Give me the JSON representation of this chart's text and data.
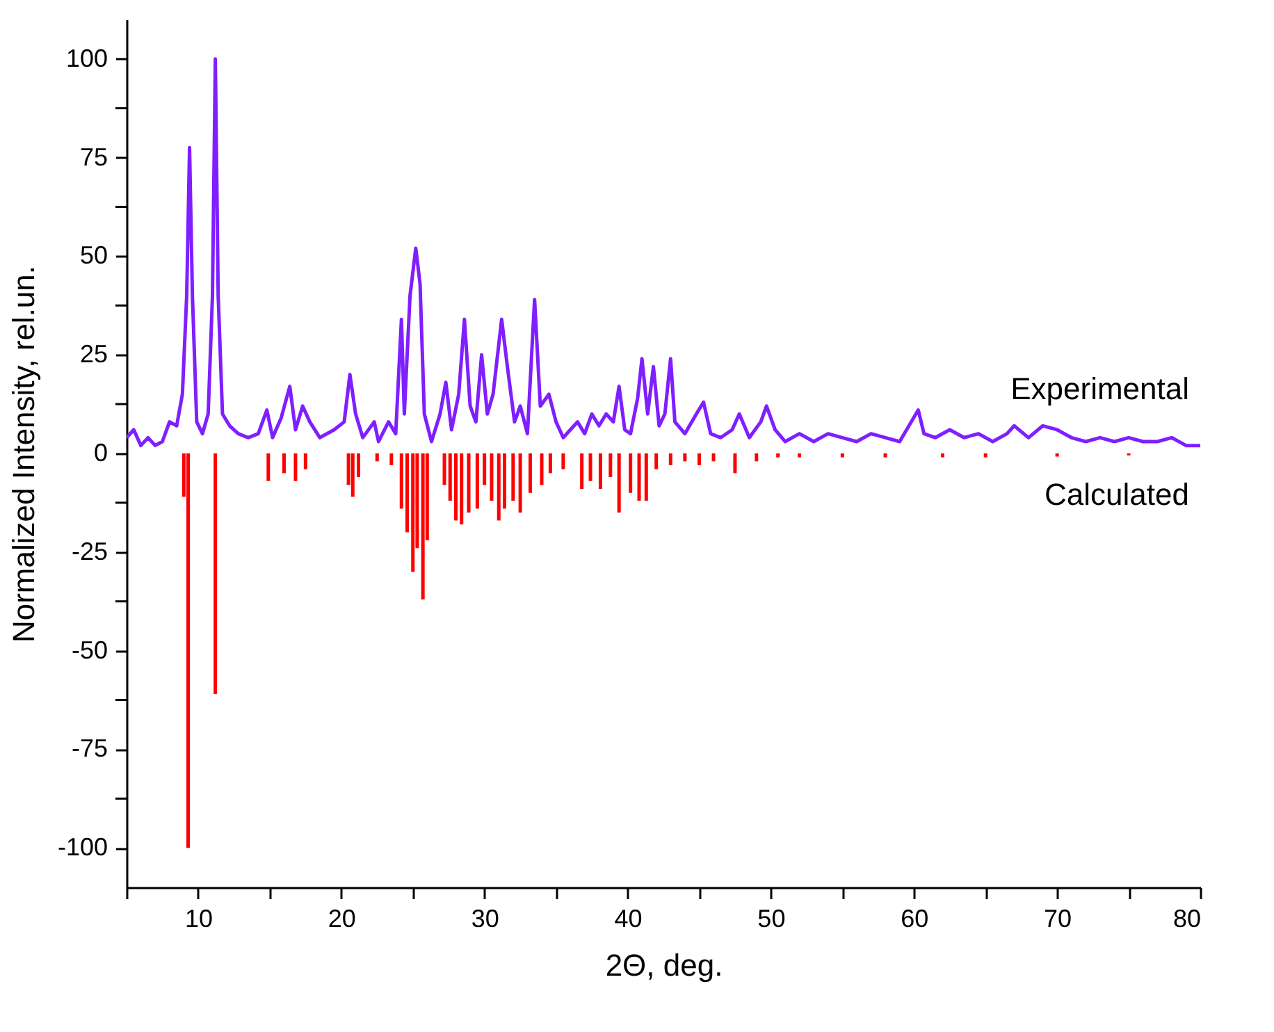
{
  "chart_data": {
    "type": "line",
    "xlabel": "2Θ, deg.",
    "ylabel": "Normalized Intensity, rel.un.",
    "xlim": [
      5,
      80
    ],
    "ylim": [
      -110,
      110
    ],
    "xticks": [
      {
        "value": 5,
        "label": null
      },
      10,
      {
        "value": 15,
        "label": null
      },
      20,
      {
        "value": 25,
        "label": null
      },
      30,
      {
        "value": 35,
        "label": null
      },
      40,
      {
        "value": 45,
        "label": null
      },
      50,
      {
        "value": 55,
        "label": null
      },
      60,
      {
        "value": 65,
        "label": null
      },
      70,
      {
        "value": 75,
        "label": null
      },
      80
    ],
    "yticks": [
      -100,
      {
        "value": -87.5,
        "label": null
      },
      -75,
      {
        "value": -62.5,
        "label": null
      },
      -50,
      {
        "value": -37.5,
        "label": null
      },
      -25,
      {
        "value": -12.5,
        "label": null
      },
      0,
      {
        "value": 12.5,
        "label": null
      },
      25,
      {
        "value": 37.5,
        "label": null
      },
      50,
      {
        "value": 62.5,
        "label": null
      },
      75,
      {
        "value": 87.5,
        "label": null
      },
      100
    ],
    "grid": false,
    "legend": false,
    "series": [
      {
        "name": "Experimental",
        "color": "#7f1fff",
        "x": [
          5,
          5.5,
          6,
          6.5,
          7,
          7.5,
          8,
          8.5,
          8.9,
          9.2,
          9.4,
          9.6,
          9.9,
          10.3,
          10.7,
          11.0,
          11.2,
          11.4,
          11.7,
          12.2,
          12.8,
          13.5,
          14.2,
          14.8,
          15.2,
          15.8,
          16.4,
          16.8,
          17.3,
          17.8,
          18.5,
          19.5,
          20.2,
          20.6,
          21.0,
          21.5,
          22.3,
          22.6,
          23.3,
          23.8,
          24.2,
          24.4,
          24.8,
          25.2,
          25.5,
          25.8,
          26.3,
          26.9,
          27.3,
          27.7,
          28.2,
          28.6,
          29.0,
          29.4,
          29.8,
          30.2,
          30.6,
          31.2,
          31.6,
          32.1,
          32.5,
          33.0,
          33.5,
          33.9,
          34.5,
          35.0,
          35.5,
          36.0,
          36.5,
          37.0,
          37.5,
          38.0,
          38.5,
          39.0,
          39.4,
          39.8,
          40.2,
          40.7,
          41.0,
          41.4,
          41.8,
          42.2,
          42.6,
          43.0,
          43.3,
          44,
          44.8,
          45.3,
          45.8,
          46.5,
          47.3,
          47.8,
          48.5,
          49.3,
          49.7,
          50.3,
          51,
          52,
          53,
          54,
          55,
          56,
          57,
          58,
          59,
          60.3,
          60.7,
          61.5,
          62.5,
          63.5,
          64.5,
          65.5,
          66.5,
          67,
          68,
          69,
          70,
          71,
          72,
          73,
          74,
          75,
          76,
          77,
          78,
          79,
          80
        ],
        "values": [
          4,
          6,
          2,
          4,
          2,
          3,
          8,
          7,
          15,
          40,
          77.5,
          40,
          8,
          5,
          10,
          40,
          100,
          40,
          10,
          7,
          5,
          4,
          5,
          11,
          4,
          9,
          17,
          6,
          12,
          8,
          4,
          6,
          8,
          20,
          10,
          4,
          8,
          3,
          8,
          5,
          34,
          10,
          40,
          52,
          43,
          10,
          3,
          10,
          18,
          6,
          15,
          34,
          12,
          8,
          25,
          10,
          15,
          34,
          22,
          8,
          12,
          5,
          39,
          12,
          15,
          8,
          4,
          6,
          8,
          5,
          10,
          7,
          10,
          8,
          17,
          6,
          5,
          14,
          24,
          10,
          22,
          7,
          10,
          24,
          8,
          5,
          10,
          13,
          5,
          4,
          6,
          10,
          4,
          8,
          12,
          6,
          3,
          5,
          3,
          5,
          4,
          3,
          5,
          4,
          3,
          11,
          5,
          4,
          6,
          4,
          5,
          3,
          5,
          7,
          4,
          7,
          6,
          4,
          3,
          4,
          3,
          4,
          3,
          3,
          4,
          2,
          2
        ]
      },
      {
        "name": "Calculated",
        "type": "bar",
        "color": "#ff0000",
        "x": [
          9.0,
          9.3,
          11.2,
          14.9,
          16.0,
          16.8,
          17.5,
          20.5,
          20.8,
          21.2,
          22.5,
          23.5,
          24.2,
          24.6,
          25.0,
          25.3,
          25.7,
          26.0,
          27.2,
          27.6,
          28.0,
          28.4,
          28.9,
          29.5,
          30.0,
          30.5,
          31.0,
          31.4,
          32.0,
          32.5,
          33.2,
          34.0,
          34.6,
          35.5,
          36.8,
          37.4,
          38.1,
          38.8,
          39.4,
          40.2,
          40.8,
          41.3,
          42,
          43,
          44,
          45,
          46,
          47.5,
          49,
          50.5,
          52,
          55,
          58,
          62,
          65,
          70,
          75
        ],
        "values": [
          -11,
          -100,
          -61,
          -7,
          -5,
          -7,
          -4,
          -8,
          -11,
          -6,
          -2,
          -3,
          -14,
          -20,
          -30,
          -24,
          -37,
          -22,
          -8,
          -12,
          -17,
          -18,
          -15,
          -14,
          -8,
          -12,
          -17,
          -14,
          -12,
          -15,
          -10,
          -8,
          -5,
          -4,
          -9,
          -7,
          -9,
          -6,
          -15,
          -10,
          -12,
          -12,
          -4,
          -3,
          -2,
          -3,
          -2,
          -5,
          -2,
          -1,
          -1,
          -1,
          -1,
          -1,
          -1,
          -0.8,
          -0.5
        ]
      }
    ]
  }
}
